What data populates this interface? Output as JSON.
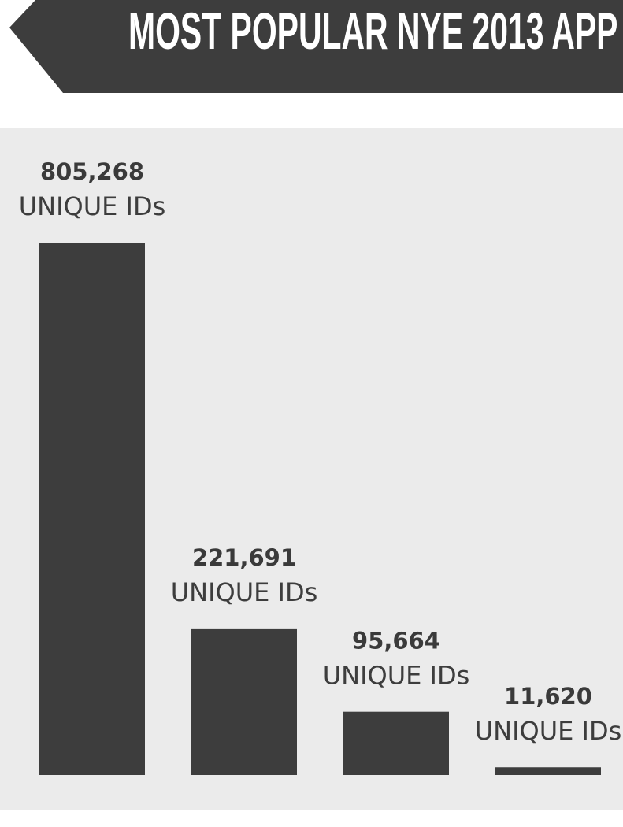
{
  "chart_data": {
    "type": "bar",
    "title": "MOST POPULAR NYE 2013 APP",
    "categories": [
      null,
      null,
      null,
      null
    ],
    "values": [
      805268,
      221691,
      95664,
      11620
    ],
    "value_labels": [
      "805,268",
      "221,691",
      "95,664",
      "11,620"
    ],
    "unit_label": "UNIQUE IDs",
    "color": "#3d3d3d"
  }
}
